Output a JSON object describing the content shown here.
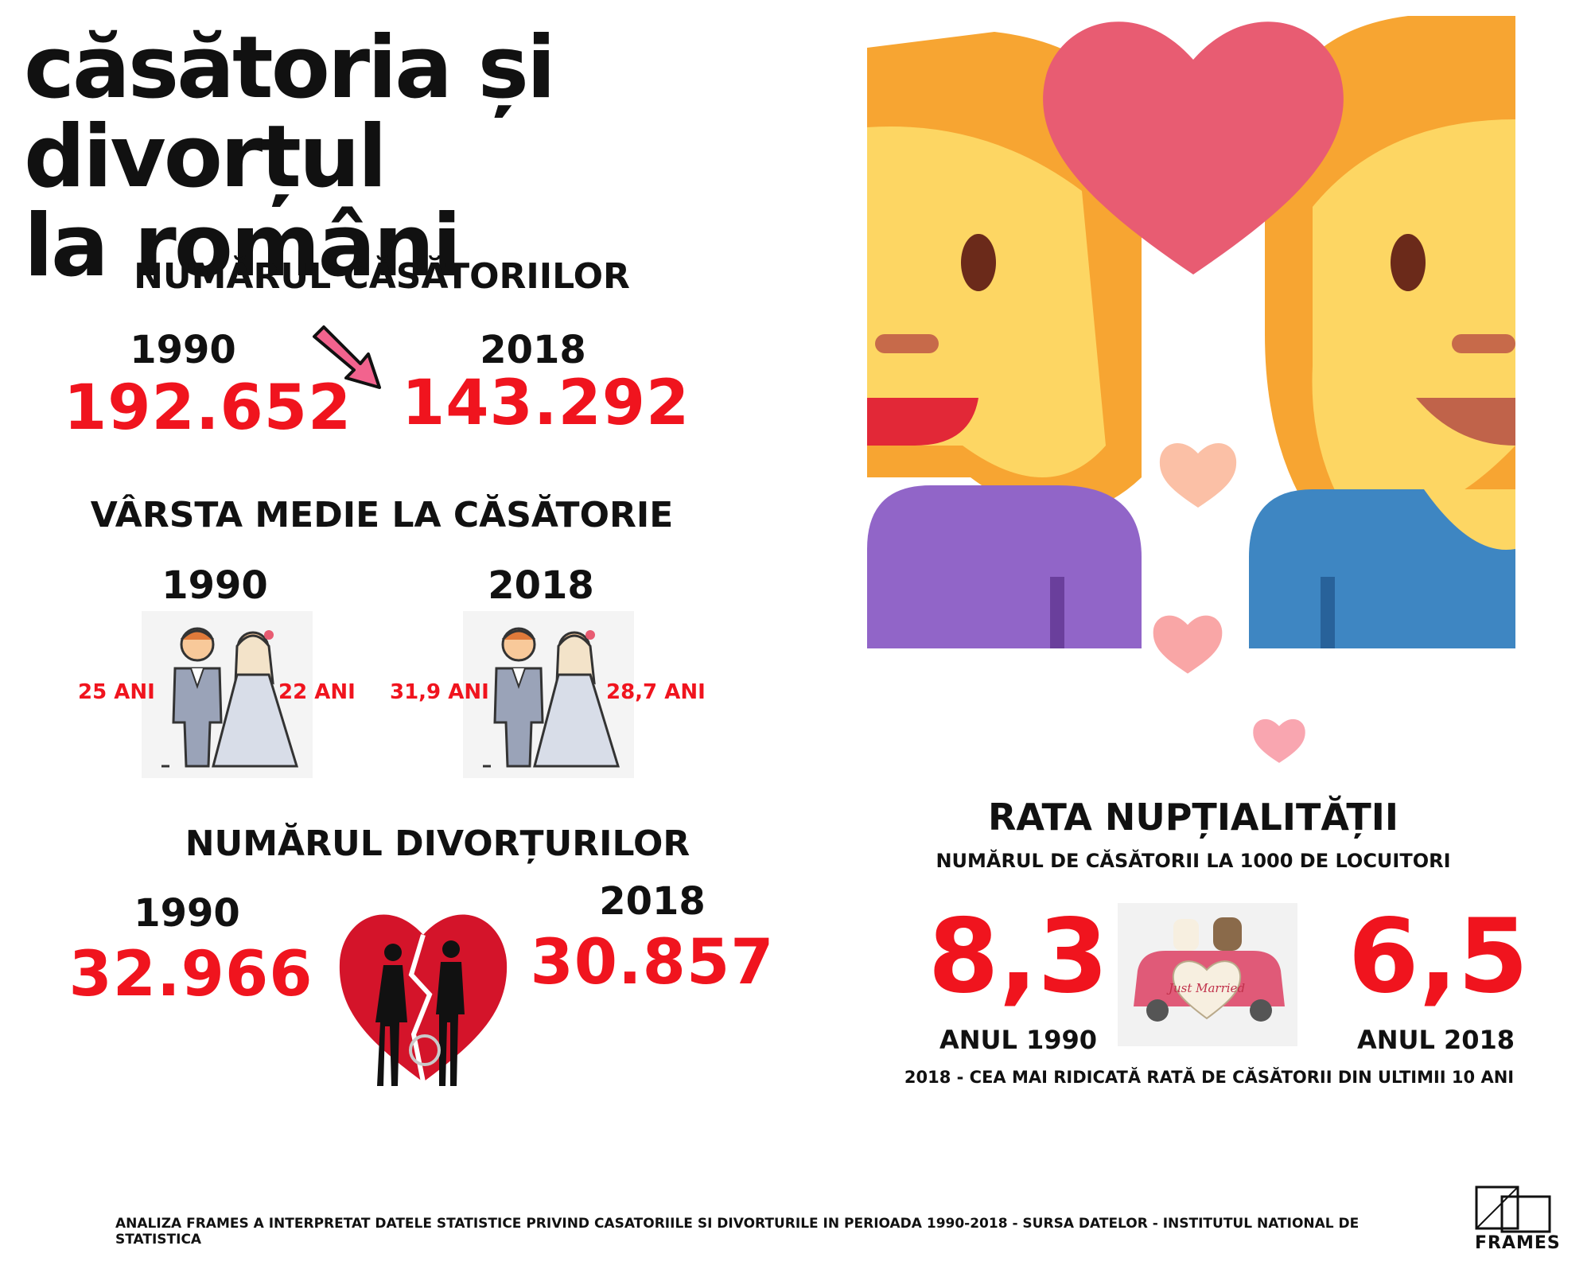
{
  "title": {
    "line1": "căsătoria și divorțul",
    "line2": "la români"
  },
  "marriages": {
    "heading": "NUMĂRUL CĂSĂTORIILOR",
    "year_a": "1990",
    "value_a": "192.652",
    "year_b": "2018",
    "value_b": "143.292",
    "trend_icon": "arrow-down-right-icon"
  },
  "age": {
    "heading": "VÂRSTA MEDIE LA CĂSĂTORIE",
    "year_a": "1990",
    "groom_a": "25 ANI",
    "bride_a": "22 ANI",
    "year_b": "2018",
    "groom_b": "31,9 ANI",
    "bride_b": "28,7 ANI"
  },
  "divorces": {
    "heading": "NUMĂRUL DIVORȚURILOR",
    "year_a": "1990",
    "value_a": "32.966",
    "year_b": "2018",
    "value_b": "30.857",
    "icon": "broken-heart-icon"
  },
  "nuptiality": {
    "heading": "RATA NUPȚIALITĂȚII",
    "subheading": "NUMĂRUL DE CĂSĂTORII LA 1000 DE LOCUITORI",
    "value_a": "8,3",
    "label_a": "ANUL 1990",
    "value_b": "6,5",
    "label_b": "ANUL 2018",
    "note": "2018 - CEA MAI RIDICATĂ RATĂ DE CĂSĂTORII DIN ULTIMII 10 ANI",
    "car_text": "Just Married"
  },
  "footer": {
    "text": "ANALIZA FRAMES A INTERPRETAT DATELE STATISTICE PRIVIND CASATORIILE SI DIVORTURILE IN PERIOADA 1990-2018 - SURSA DATELOR - INSTITUTUL NATIONAL DE STATISTICA",
    "logo": "FRAMES"
  },
  "colors": {
    "accent_red": "#f0141e",
    "heart_pink": "#e85c72",
    "hair_orange": "#f7a532",
    "skin_yellow": "#fdd663",
    "shirt_purple": "#9165c8",
    "shirt_blue": "#3e86c2"
  }
}
